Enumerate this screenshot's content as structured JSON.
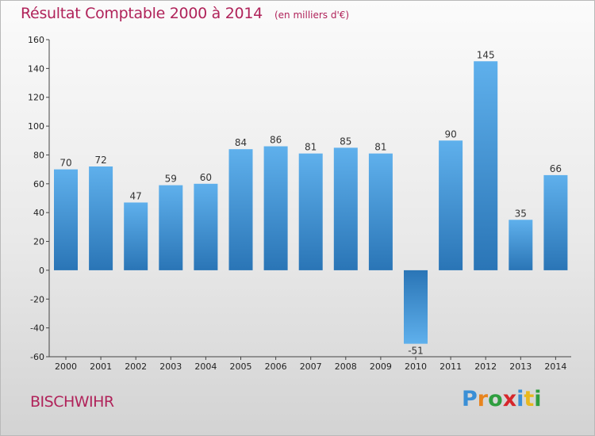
{
  "title": "Résultat Comptable 2000 à 2014",
  "subtitle": "(en milliers d'€)",
  "commune": "BISCHWIHR",
  "logo": {
    "text": "Proxiti",
    "letters": [
      "P",
      "r",
      "o",
      "x",
      "i",
      "t",
      "i"
    ],
    "colors": [
      "#3a8fd6",
      "#e8841e",
      "#2f9e3f",
      "#d6262b",
      "#3a8fd6",
      "#e8b81e",
      "#2f9e3f"
    ]
  },
  "colors": {
    "title": "#b0235a",
    "bar_light": "#5aaae8",
    "bar_dark": "#2a73b5",
    "axis": "#444444"
  },
  "chart_data": {
    "type": "bar",
    "title": "Résultat Comptable 2000 à 2014",
    "subtitle": "(en milliers d'€)",
    "categories": [
      "2000",
      "2001",
      "2002",
      "2003",
      "2004",
      "2005",
      "2006",
      "2007",
      "2008",
      "2009",
      "2010",
      "2011",
      "2012",
      "2013",
      "2014"
    ],
    "values": [
      70,
      72,
      47,
      59,
      60,
      84,
      86,
      81,
      85,
      81,
      -51,
      90,
      145,
      35,
      66
    ],
    "ylim": [
      -60,
      160
    ],
    "yticks": [
      -60,
      -40,
      -20,
      0,
      20,
      40,
      60,
      80,
      100,
      120,
      140,
      160
    ],
    "xlabel": "",
    "ylabel": "",
    "grid": false,
    "legend": "none"
  }
}
